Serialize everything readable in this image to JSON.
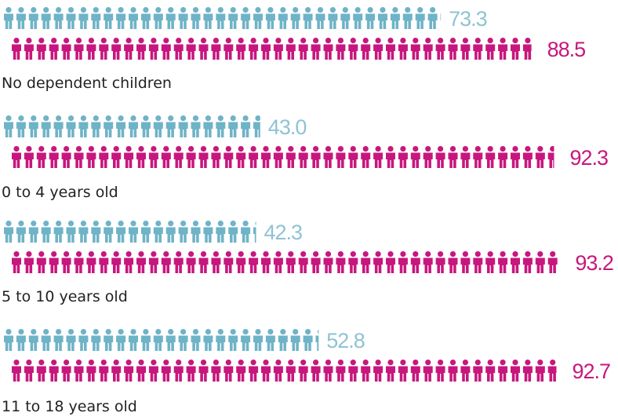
{
  "chart_data": {
    "type": "bar",
    "style": "pictogram",
    "categories": [
      "No dependent children",
      "0 to 4 years old",
      "5 to 10 years old",
      "11 to 18 years old"
    ],
    "series": [
      {
        "values": [
          73.3,
          43.0,
          42.3,
          52.8
        ],
        "color": "#6fb3c7",
        "label_color": "#8ec3d3"
      },
      {
        "values": [
          88.5,
          92.3,
          93.2,
          92.7
        ],
        "color": "#c7177e",
        "label_color": "#c7177e"
      }
    ],
    "value_labels": [
      [
        "73.3",
        "43.0",
        "42.3",
        "52.8"
      ],
      [
        "88.5",
        "92.3",
        "93.2",
        "92.7"
      ]
    ],
    "icon": "person-icon",
    "title": "",
    "xlabel": "",
    "ylabel": "",
    "xlim": [
      0,
      100
    ],
    "grid": false,
    "legend": "none"
  }
}
